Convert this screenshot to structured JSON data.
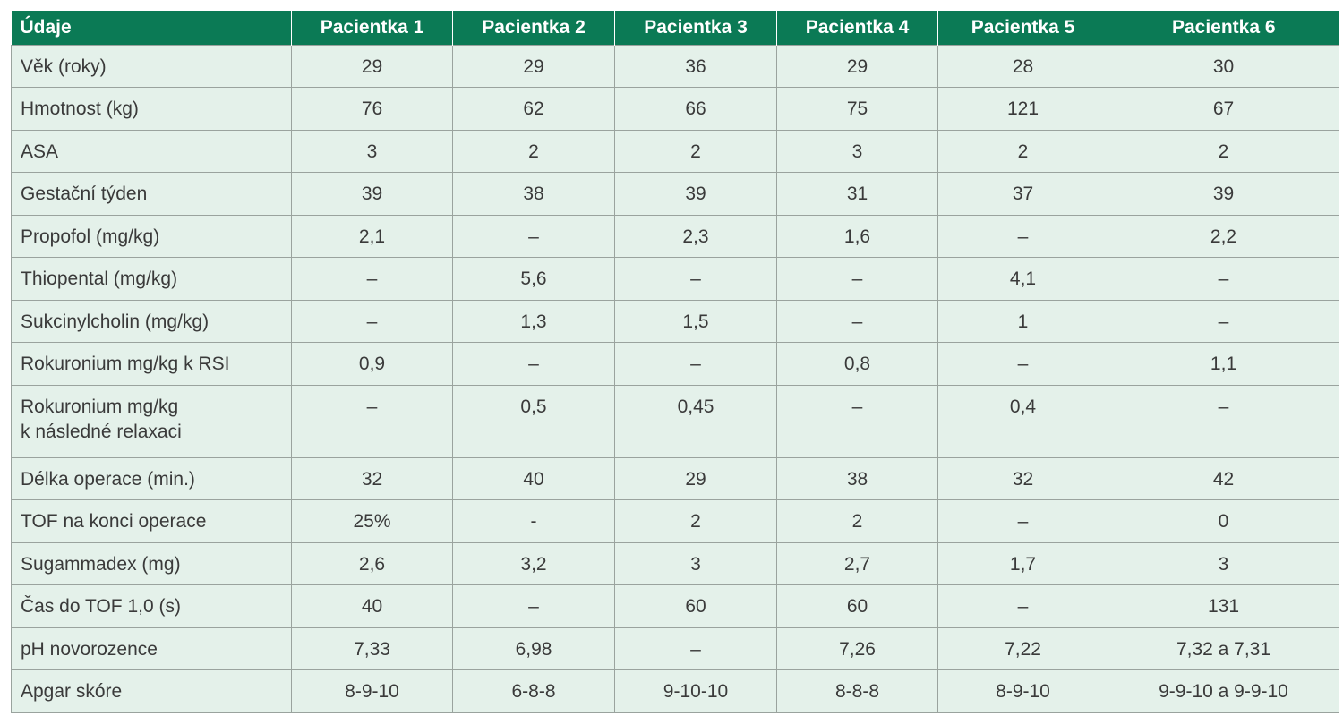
{
  "table": {
    "header": [
      "Údaje",
      "Pacientka 1",
      "Pacientka 2",
      "Pacientka 3",
      "Pacientka 4",
      "Pacientka 5",
      "Pacientka 6"
    ],
    "rows": [
      [
        "Věk (roky)",
        "29",
        "29",
        "36",
        "29",
        "28",
        "30"
      ],
      [
        "Hmotnost (kg)",
        "76",
        "62",
        "66",
        "75",
        "121",
        "67"
      ],
      [
        "ASA",
        "3",
        "2",
        "2",
        "3",
        "2",
        "2"
      ],
      [
        "Gestační týden",
        "39",
        "38",
        "39",
        "31",
        "37",
        "39"
      ],
      [
        "Propofol (mg/kg)",
        "2,1",
        "–",
        "2,3",
        "1,6",
        "–",
        "2,2"
      ],
      [
        "Thiopental (mg/kg)",
        "–",
        "5,6",
        "–",
        "–",
        "4,1",
        "–"
      ],
      [
        "Sukcinylcholin (mg/kg)",
        "–",
        "1,3",
        "1,5",
        "–",
        "1",
        "–"
      ],
      [
        "Rokuronium mg/kg k RSI",
        "0,9",
        "–",
        "–",
        "0,8",
        "–",
        "1,1"
      ],
      [
        "Rokuronium mg/kg\nk následné relaxaci",
        "–",
        "0,5",
        "0,45",
        "–",
        "0,4",
        "–"
      ],
      [
        "Délka operace (min.)",
        "32",
        "40",
        "29",
        "38",
        "32",
        "42"
      ],
      [
        "TOF na konci operace",
        "25%",
        "-",
        "2",
        "2",
        "–",
        "0"
      ],
      [
        "Sugammadex (mg)",
        "2,6",
        "3,2",
        "3",
        "2,7",
        "1,7",
        "3"
      ],
      [
        "Čas do TOF 1,0 (s)",
        "40",
        "–",
        "60",
        "60",
        "–",
        "131"
      ],
      [
        "pH novorozence",
        "7,33",
        "6,98",
        "–",
        "7,26",
        "7,22",
        "7,32 a 7,31"
      ],
      [
        "Apgar skóre",
        "8-9-10",
        "6-8-8",
        "9-10-10",
        "8-8-8",
        "8-9-10",
        "9-9-10 a 9-9-10"
      ]
    ]
  }
}
